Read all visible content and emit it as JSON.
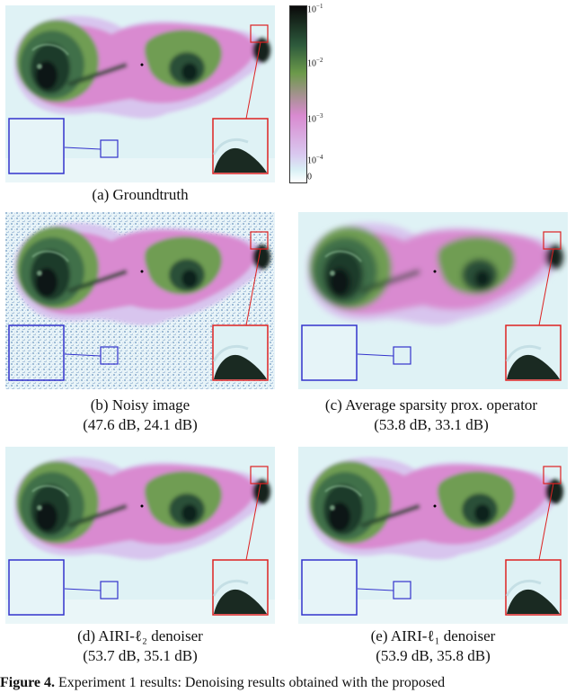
{
  "panels": [
    {
      "id": "a",
      "caption": "(a) Groundtruth",
      "metrics": "",
      "noisy": false,
      "smooth": false
    },
    {
      "id": "b",
      "caption": "(b) Noisy image",
      "metrics": "(47.6 dB, 24.1 dB)",
      "noisy": true,
      "smooth": false
    },
    {
      "id": "c",
      "caption": "(c) Average sparsity prox. operator",
      "metrics": "(53.8 dB, 33.1 dB)",
      "noisy": false,
      "smooth": true
    },
    {
      "id": "d",
      "caption": "(d) AIRI-ℓ₂ denoiser",
      "metrics": "(53.7 dB, 35.1 dB)",
      "noisy": false,
      "smooth": false
    },
    {
      "id": "e",
      "caption": "(e) AIRI-ℓ₁ denoiser",
      "metrics": "(53.9 dB, 35.8 dB)",
      "noisy": false,
      "smooth": false
    }
  ],
  "colorbar": {
    "ticks": [
      {
        "base": "10",
        "exp": "−1"
      },
      {
        "base": "10",
        "exp": "−2"
      },
      {
        "base": "10",
        "exp": "−3"
      },
      {
        "base": "10",
        "exp": "−4"
      },
      {
        "base": "0",
        "exp": ""
      }
    ],
    "colors": {
      "top": "#0a0a0a",
      "dark_green": "#2d5a3c",
      "green": "#6c9a4a",
      "pink": "#d98ad0",
      "lavender": "#d9c8ef",
      "pale": "#d9f0f5",
      "bottom": "#ffffff"
    }
  },
  "figure_caption": {
    "label": "Figure 4.",
    "text": " Experiment 1 results: Denoising results obtained with the proposed"
  }
}
